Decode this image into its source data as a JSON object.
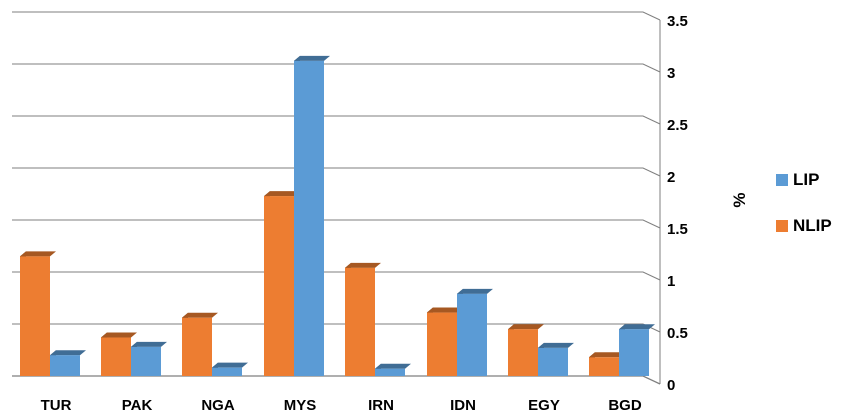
{
  "chart_data": {
    "type": "bar",
    "categories": [
      "TUR",
      "PAK",
      "NGA",
      "MYS",
      "IRN",
      "IDN",
      "EGY",
      "BGD"
    ],
    "series": [
      {
        "name": "NLIP",
        "color": "#ED7D31",
        "values": [
          1.15,
          0.37,
          0.56,
          1.73,
          1.04,
          0.61,
          0.45,
          0.18
        ]
      },
      {
        "name": "LIP",
        "color": "#5B9BD5",
        "values": [
          0.2,
          0.28,
          0.08,
          3.03,
          0.07,
          0.79,
          0.27,
          0.45
        ]
      }
    ],
    "ylim": [
      0,
      3.5
    ],
    "yticks": [
      "0",
      "0.5",
      "1",
      "1.5",
      "2",
      "2.5",
      "3",
      "3.5"
    ],
    "ylabel": "%",
    "legend": [
      "LIP",
      "NLIP"
    ],
    "legend_position": "right",
    "grid": true,
    "style": "3d-clustered-column"
  }
}
